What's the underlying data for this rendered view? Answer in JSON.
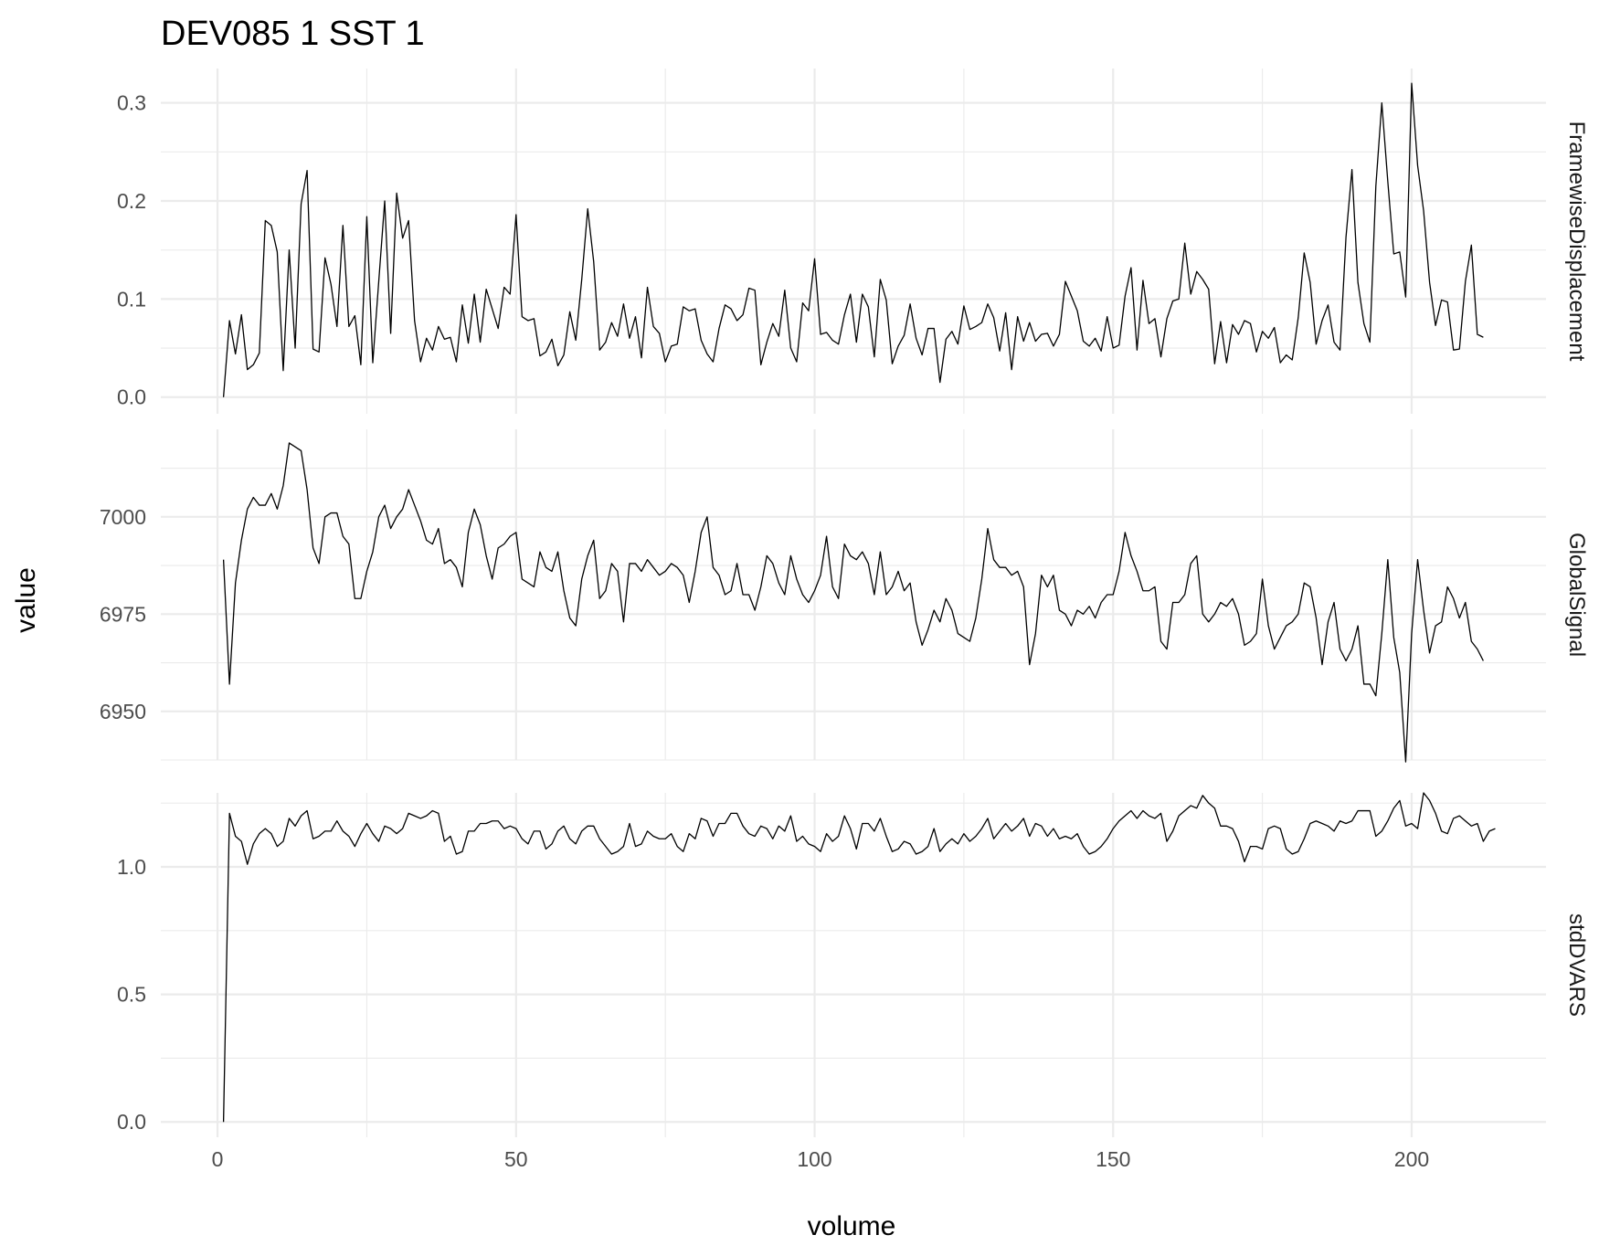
{
  "chart_data": {
    "type": "line",
    "title": "DEV085  1  SST  1",
    "xlabel": "volume",
    "ylabel": "value",
    "xlim": [
      -9.5,
      222.5
    ],
    "x_ticks": [
      0,
      50,
      100,
      150,
      200
    ],
    "x_tick_labels": [
      "0",
      "50",
      "100",
      "150",
      "200"
    ],
    "grid": true,
    "legend": "none",
    "colors": {
      "line": "#000000",
      "grid": "#ebebeb",
      "tick_text": "#4d4d4d"
    },
    "panels": [
      {
        "strip_label": "FramewiseDisplacement",
        "ylim": [
          -0.017,
          0.335
        ],
        "y_ticks": [
          0.0,
          0.1,
          0.2,
          0.3
        ],
        "y_tick_labels": [
          "0.0",
          "0.1",
          "0.2",
          "0.3"
        ],
        "values": [
          0.0,
          0.078,
          0.044,
          0.084,
          0.028,
          0.033,
          0.045,
          0.18,
          0.175,
          0.148,
          0.027,
          0.15,
          0.05,
          0.197,
          0.231,
          0.049,
          0.046,
          0.142,
          0.115,
          0.072,
          0.175,
          0.072,
          0.083,
          0.033,
          0.184,
          0.035,
          0.118,
          0.2,
          0.065,
          0.208,
          0.162,
          0.18,
          0.078,
          0.036,
          0.06,
          0.048,
          0.072,
          0.059,
          0.061,
          0.036,
          0.094,
          0.055,
          0.105,
          0.056,
          0.11,
          0.09,
          0.07,
          0.112,
          0.105,
          0.186,
          0.082,
          0.078,
          0.08,
          0.042,
          0.046,
          0.059,
          0.032,
          0.043,
          0.087,
          0.058,
          0.12,
          0.192,
          0.138,
          0.048,
          0.056,
          0.076,
          0.062,
          0.095,
          0.06,
          0.082,
          0.04,
          0.112,
          0.072,
          0.065,
          0.036,
          0.052,
          0.054,
          0.092,
          0.088,
          0.09,
          0.058,
          0.044,
          0.036,
          0.07,
          0.094,
          0.09,
          0.078,
          0.084,
          0.111,
          0.109,
          0.033,
          0.056,
          0.075,
          0.062,
          0.109,
          0.05,
          0.036,
          0.096,
          0.088,
          0.141,
          0.064,
          0.066,
          0.058,
          0.054,
          0.084,
          0.105,
          0.056,
          0.105,
          0.092,
          0.041,
          0.12,
          0.099,
          0.034,
          0.052,
          0.063,
          0.095,
          0.06,
          0.043,
          0.07,
          0.07,
          0.015,
          0.059,
          0.067,
          0.054,
          0.093,
          0.069,
          0.072,
          0.076,
          0.095,
          0.081,
          0.047,
          0.086,
          0.028,
          0.082,
          0.057,
          0.076,
          0.057,
          0.064,
          0.065,
          0.052,
          0.064,
          0.118,
          0.103,
          0.088,
          0.057,
          0.052,
          0.06,
          0.047,
          0.082,
          0.05,
          0.053,
          0.103,
          0.132,
          0.048,
          0.119,
          0.075,
          0.08,
          0.041,
          0.08,
          0.098,
          0.1,
          0.157,
          0.105,
          0.128,
          0.12,
          0.11,
          0.034,
          0.077,
          0.035,
          0.074,
          0.064,
          0.078,
          0.075,
          0.046,
          0.067,
          0.06,
          0.071,
          0.035,
          0.043,
          0.038,
          0.081,
          0.147,
          0.117,
          0.054,
          0.078,
          0.094,
          0.056,
          0.048,
          0.163,
          0.232,
          0.117,
          0.075,
          0.056,
          0.215,
          0.3,
          0.22,
          0.146,
          0.148,
          0.102,
          0.32,
          0.236,
          0.19,
          0.117,
          0.073,
          0.099,
          0.097,
          0.048,
          0.049,
          0.118,
          0.155,
          0.064,
          0.061
        ]
      },
      {
        "strip_label": "GlobalSignal",
        "ylim": [
          6937.5,
          7022.5
        ],
        "y_ticks": [
          6950,
          6975,
          7000
        ],
        "y_tick_labels": [
          "6950",
          "6975",
          "7000"
        ],
        "values": [
          6989,
          6957,
          6983,
          6994,
          7002,
          7005,
          7003,
          7003,
          7006,
          7002,
          7008,
          7019,
          7018,
          7017,
          7007,
          6992,
          6988,
          7000,
          7001,
          7001,
          6995,
          6993,
          6979,
          6979,
          6986,
          6991,
          7000,
          7003,
          6997,
          7000,
          7002,
          7007,
          7003,
          6999,
          6994,
          6993,
          6997,
          6988,
          6989,
          6987,
          6982,
          6996,
          7002,
          6998,
          6990,
          6984,
          6992,
          6993,
          6995,
          6996,
          6984,
          6983,
          6982,
          6991,
          6987,
          6986,
          6991,
          6981,
          6974,
          6972,
          6984,
          6990,
          6994,
          6979,
          6981,
          6988,
          6986,
          6973,
          6988,
          6988,
          6986,
          6989,
          6987,
          6985,
          6986,
          6988,
          6987,
          6985,
          6978,
          6986,
          6996,
          7000,
          6987,
          6985,
          6980,
          6981,
          6988,
          6980,
          6980,
          6976,
          6982,
          6990,
          6988,
          6983,
          6980,
          6990,
          6984,
          6980,
          6978,
          6981,
          6985,
          6995,
          6982,
          6979,
          6993,
          6990,
          6989,
          6991,
          6988,
          6980,
          6991,
          6980,
          6982,
          6986,
          6981,
          6983,
          6973,
          6967,
          6971,
          6976,
          6973,
          6979,
          6976,
          6970,
          6969,
          6968,
          6974,
          6984,
          6997,
          6989,
          6987,
          6987,
          6985,
          6986,
          6982,
          6962,
          6970,
          6985,
          6982,
          6985,
          6976,
          6975,
          6972,
          6976,
          6975,
          6977,
          6974,
          6978,
          6980,
          6980,
          6986,
          6996,
          6990,
          6986,
          6981,
          6981,
          6982,
          6968,
          6966,
          6978,
          6978,
          6980,
          6988,
          6990,
          6975,
          6973,
          6975,
          6978,
          6977,
          6979,
          6975,
          6967,
          6968,
          6970,
          6984,
          6972,
          6966,
          6969,
          6972,
          6973,
          6975,
          6983,
          6982,
          6974,
          6962,
          6973,
          6978,
          6966,
          6963,
          6966,
          6972,
          6957,
          6957,
          6954,
          6970,
          6989,
          6969,
          6960,
          6937,
          6970,
          6989,
          6976,
          6965,
          6972,
          6973,
          6982,
          6979,
          6974,
          6978,
          6968,
          6966,
          6963
        ]
      },
      {
        "strip_label": "stdDVARS",
        "ylim": [
          -0.06,
          1.29
        ],
        "y_ticks": [
          0.0,
          0.5,
          1.0
        ],
        "y_tick_labels": [
          "0.0",
          "0.5",
          "1.0"
        ],
        "values": [
          0.0,
          1.21,
          1.12,
          1.1,
          1.01,
          1.09,
          1.13,
          1.15,
          1.13,
          1.08,
          1.1,
          1.19,
          1.16,
          1.2,
          1.22,
          1.11,
          1.12,
          1.14,
          1.14,
          1.18,
          1.14,
          1.12,
          1.08,
          1.13,
          1.17,
          1.13,
          1.1,
          1.16,
          1.15,
          1.13,
          1.15,
          1.21,
          1.2,
          1.19,
          1.2,
          1.22,
          1.21,
          1.1,
          1.12,
          1.05,
          1.06,
          1.14,
          1.14,
          1.17,
          1.17,
          1.18,
          1.18,
          1.15,
          1.16,
          1.15,
          1.11,
          1.09,
          1.14,
          1.14,
          1.07,
          1.09,
          1.14,
          1.16,
          1.11,
          1.09,
          1.14,
          1.16,
          1.16,
          1.11,
          1.08,
          1.05,
          1.06,
          1.08,
          1.17,
          1.08,
          1.09,
          1.14,
          1.12,
          1.11,
          1.11,
          1.13,
          1.08,
          1.06,
          1.13,
          1.11,
          1.19,
          1.18,
          1.12,
          1.17,
          1.17,
          1.21,
          1.21,
          1.16,
          1.13,
          1.12,
          1.16,
          1.15,
          1.11,
          1.16,
          1.14,
          1.2,
          1.1,
          1.12,
          1.09,
          1.08,
          1.06,
          1.13,
          1.1,
          1.12,
          1.2,
          1.15,
          1.07,
          1.17,
          1.17,
          1.14,
          1.19,
          1.12,
          1.06,
          1.07,
          1.1,
          1.09,
          1.05,
          1.06,
          1.08,
          1.15,
          1.06,
          1.09,
          1.11,
          1.09,
          1.13,
          1.1,
          1.12,
          1.15,
          1.19,
          1.11,
          1.14,
          1.17,
          1.14,
          1.16,
          1.19,
          1.12,
          1.17,
          1.16,
          1.12,
          1.15,
          1.11,
          1.12,
          1.11,
          1.13,
          1.08,
          1.05,
          1.06,
          1.08,
          1.11,
          1.15,
          1.18,
          1.2,
          1.22,
          1.19,
          1.22,
          1.2,
          1.19,
          1.21,
          1.1,
          1.14,
          1.2,
          1.22,
          1.24,
          1.23,
          1.28,
          1.25,
          1.23,
          1.16,
          1.16,
          1.15,
          1.1,
          1.02,
          1.08,
          1.08,
          1.07,
          1.15,
          1.16,
          1.15,
          1.07,
          1.05,
          1.06,
          1.11,
          1.17,
          1.18,
          1.17,
          1.16,
          1.14,
          1.18,
          1.17,
          1.18,
          1.22,
          1.22,
          1.22,
          1.12,
          1.14,
          1.18,
          1.23,
          1.26,
          1.16,
          1.17,
          1.15,
          1.29,
          1.26,
          1.21,
          1.14,
          1.13,
          1.19,
          1.2,
          1.18,
          1.16,
          1.17,
          1.1,
          1.14,
          1.15
        ]
      }
    ]
  }
}
